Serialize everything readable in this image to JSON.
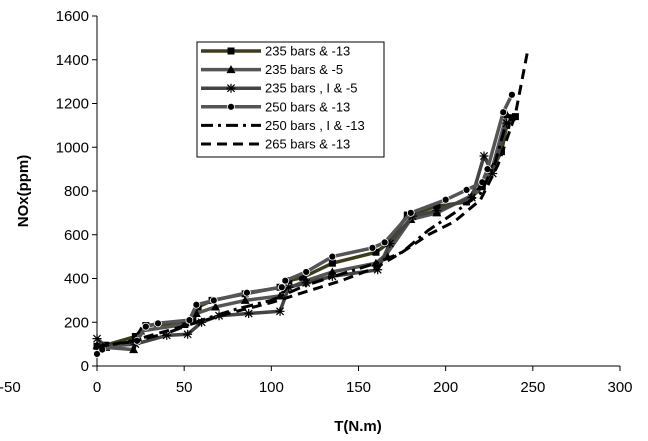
{
  "chart_data": {
    "type": "line",
    "title": "",
    "xlabel": "T(N.m)",
    "ylabel": "NOx(ppm)",
    "xlim": [
      -50,
      300
    ],
    "ylim": [
      0,
      1600
    ],
    "x_ticks": [
      "-50",
      "0",
      "50",
      "100",
      "150",
      "200",
      "250",
      "300"
    ],
    "y_ticks": [
      "0",
      "200",
      "400",
      "600",
      "800",
      "1000",
      "1200",
      "1400",
      "1600"
    ],
    "grid": false,
    "legend_position": "top-left inside",
    "series": [
      {
        "name": "235 bars & -13",
        "color": "#3d3d1c",
        "marker": "square",
        "dash": "solid",
        "points": [
          [
            0,
            90
          ],
          [
            5,
            95
          ],
          [
            22,
            135
          ],
          [
            28,
            185
          ],
          [
            35,
            190
          ],
          [
            50,
            195
          ],
          [
            55,
            210
          ],
          [
            58,
            270
          ],
          [
            66,
            300
          ],
          [
            85,
            330
          ],
          [
            105,
            360
          ],
          [
            110,
            390
          ],
          [
            118,
            405
          ],
          [
            135,
            470
          ],
          [
            160,
            520
          ],
          [
            167,
            560
          ],
          [
            178,
            690
          ],
          [
            195,
            730
          ],
          [
            212,
            750
          ],
          [
            221,
            820
          ],
          [
            226,
            890
          ],
          [
            232,
            980
          ],
          [
            235,
            1100
          ],
          [
            238,
            1135
          ],
          [
            240,
            1140
          ]
        ]
      },
      {
        "name": "235 bars & -5",
        "color": "#555555",
        "marker": "triangle",
        "dash": "solid",
        "points": [
          [
            0,
            95
          ],
          [
            5,
            85
          ],
          [
            21,
            75
          ],
          [
            25,
            160
          ],
          [
            50,
            190
          ],
          [
            57,
            240
          ],
          [
            68,
            270
          ],
          [
            85,
            300
          ],
          [
            105,
            320
          ],
          [
            108,
            350
          ],
          [
            120,
            390
          ],
          [
            135,
            430
          ],
          [
            160,
            470
          ],
          [
            166,
            510
          ],
          [
            180,
            670
          ],
          [
            195,
            700
          ],
          [
            215,
            780
          ],
          [
            220,
            820
          ],
          [
            227,
            910
          ],
          [
            235,
            1150
          ]
        ]
      },
      {
        "name": "235 bars , I & -5",
        "color": "#444444",
        "marker": "star",
        "dash": "solid",
        "points": [
          [
            0,
            125
          ],
          [
            5,
            90
          ],
          [
            22,
            100
          ],
          [
            40,
            140
          ],
          [
            52,
            145
          ],
          [
            60,
            200
          ],
          [
            70,
            230
          ],
          [
            87,
            240
          ],
          [
            105,
            250
          ],
          [
            110,
            360
          ],
          [
            120,
            380
          ],
          [
            135,
            410
          ],
          [
            161,
            440
          ],
          [
            168,
            560
          ],
          [
            181,
            685
          ],
          [
            195,
            710
          ],
          [
            215,
            770
          ],
          [
            222,
            960
          ],
          [
            227,
            880
          ],
          [
            235,
            1110
          ]
        ]
      },
      {
        "name": "250 bars & -13",
        "color": "#555555",
        "marker": "circle",
        "dash": "solid",
        "points": [
          [
            0,
            55
          ],
          [
            3,
            75
          ],
          [
            23,
            115
          ],
          [
            28,
            180
          ],
          [
            35,
            195
          ],
          [
            53,
            210
          ],
          [
            57,
            280
          ],
          [
            67,
            300
          ],
          [
            86,
            335
          ],
          [
            106,
            360
          ],
          [
            108,
            390
          ],
          [
            120,
            430
          ],
          [
            135,
            500
          ],
          [
            158,
            540
          ],
          [
            165,
            565
          ],
          [
            180,
            700
          ],
          [
            200,
            760
          ],
          [
            212,
            805
          ],
          [
            221,
            840
          ],
          [
            224,
            900
          ],
          [
            233,
            1160
          ],
          [
            238,
            1240
          ]
        ]
      },
      {
        "name": "250 bars , I & -13",
        "color": "#000000",
        "marker": "none",
        "dash": "dashdot",
        "points": [
          [
            0,
            90
          ],
          [
            20,
            110
          ],
          [
            40,
            150
          ],
          [
            60,
            210
          ],
          [
            80,
            260
          ],
          [
            100,
            300
          ],
          [
            120,
            370
          ],
          [
            140,
            420
          ],
          [
            160,
            470
          ],
          [
            175,
            520
          ],
          [
            190,
            620
          ],
          [
            205,
            700
          ],
          [
            220,
            790
          ],
          [
            228,
            920
          ],
          [
            235,
            1120
          ]
        ]
      },
      {
        "name": "265 bars & -13",
        "color": "#000000",
        "marker": "none",
        "dash": "dash",
        "points": [
          [
            0,
            85
          ],
          [
            20,
            115
          ],
          [
            40,
            160
          ],
          [
            60,
            205
          ],
          [
            80,
            250
          ],
          [
            100,
            290
          ],
          [
            120,
            340
          ],
          [
            140,
            390
          ],
          [
            160,
            450
          ],
          [
            175,
            520
          ],
          [
            190,
            600
          ],
          [
            205,
            660
          ],
          [
            220,
            760
          ],
          [
            230,
            920
          ],
          [
            240,
            1150
          ],
          [
            247,
            1440
          ]
        ]
      }
    ]
  }
}
